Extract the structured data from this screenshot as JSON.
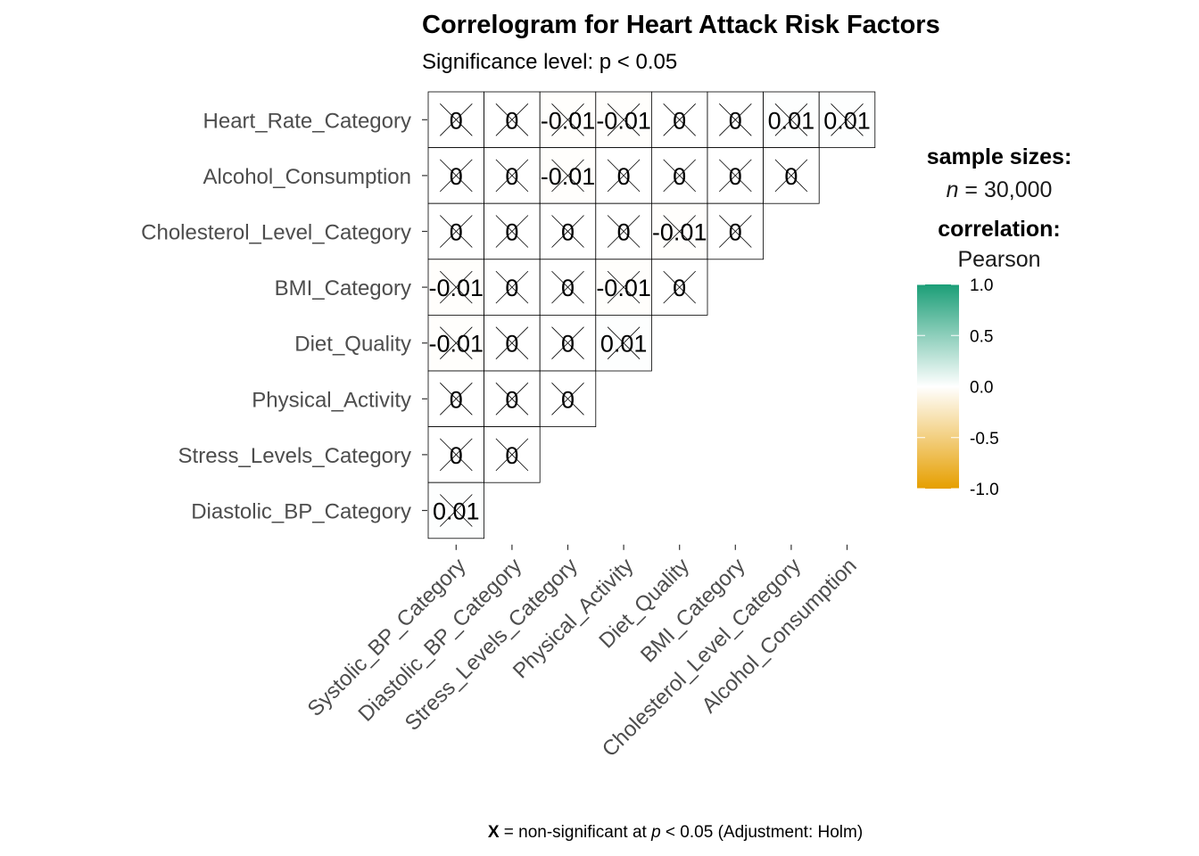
{
  "title": "Correlogram for Heart Attack Risk Factors",
  "subtitle": "Significance level: p < 0.05",
  "caption": {
    "symbol": "X",
    "text_before_p": " = non-significant at ",
    "p": "p",
    "text_after_p": " < 0.05 (Adjustment: Holm)"
  },
  "legend": {
    "sample_title": "sample sizes:",
    "n_symbol": "n",
    "n_value": " = 30,000",
    "corr_title": "correlation:",
    "corr_method": "Pearson",
    "colors": {
      "high": "#1b9e77",
      "mid": "#ffffff",
      "low": "#e69f00"
    },
    "ticks": [
      "1.0",
      "0.5",
      "0.0",
      "-0.5",
      "-1.0"
    ],
    "tick_values": [
      1.0,
      0.5,
      0.0,
      -0.5,
      -1.0
    ]
  },
  "chart_data": {
    "type": "heatmap",
    "title": "Correlogram for Heart Attack Risk Factors",
    "subtitle": "Significance level: p < 0.05",
    "x_categories": [
      "Systolic_BP_Category",
      "Diastolic_BP_Category",
      "Stress_Levels_Category",
      "Physical_Activity",
      "Diet_Quality",
      "BMI_Category",
      "Cholesterol_Level_Category",
      "Alcohol_Consumption"
    ],
    "y_categories": [
      "Heart_Rate_Category",
      "Alcohol_Consumption",
      "Cholesterol_Level_Category",
      "BMI_Category",
      "Diet_Quality",
      "Physical_Activity",
      "Stress_Levels_Category",
      "Diastolic_BP_Category"
    ],
    "cells": [
      [
        "0",
        "0",
        "-0.01",
        "-0.01",
        "0",
        "0",
        "0.01",
        "0.01"
      ],
      [
        "0",
        "0",
        "-0.01",
        "0",
        "0",
        "0",
        "0"
      ],
      [
        "0",
        "0",
        "0",
        "0",
        "-0.01",
        "0"
      ],
      [
        "-0.01",
        "0",
        "0",
        "-0.01",
        "0"
      ],
      [
        "-0.01",
        "0",
        "0",
        "0.01"
      ],
      [
        "0",
        "0",
        "0"
      ],
      [
        "0",
        "0"
      ],
      [
        "0.01"
      ]
    ],
    "values": [
      [
        0,
        0,
        -0.01,
        -0.01,
        0,
        0,
        0.01,
        0.01
      ],
      [
        0,
        0,
        -0.01,
        0,
        0,
        0,
        0
      ],
      [
        0,
        0,
        0,
        0,
        -0.01,
        0
      ],
      [
        -0.01,
        0,
        0,
        -0.01,
        0
      ],
      [
        -0.01,
        0,
        0,
        0.01
      ],
      [
        0,
        0,
        0
      ],
      [
        0,
        0
      ],
      [
        0.01
      ]
    ],
    "non_significant": [
      [
        true,
        true,
        true,
        true,
        true,
        true,
        true,
        true
      ],
      [
        true,
        true,
        true,
        true,
        true,
        true,
        true
      ],
      [
        true,
        true,
        true,
        true,
        true,
        true
      ],
      [
        true,
        true,
        true,
        true,
        true
      ],
      [
        true,
        true,
        true,
        true
      ],
      [
        true,
        true,
        true
      ],
      [
        true,
        true
      ],
      [
        true
      ]
    ],
    "color_scale_range": [
      -1,
      1
    ],
    "grid": false
  }
}
